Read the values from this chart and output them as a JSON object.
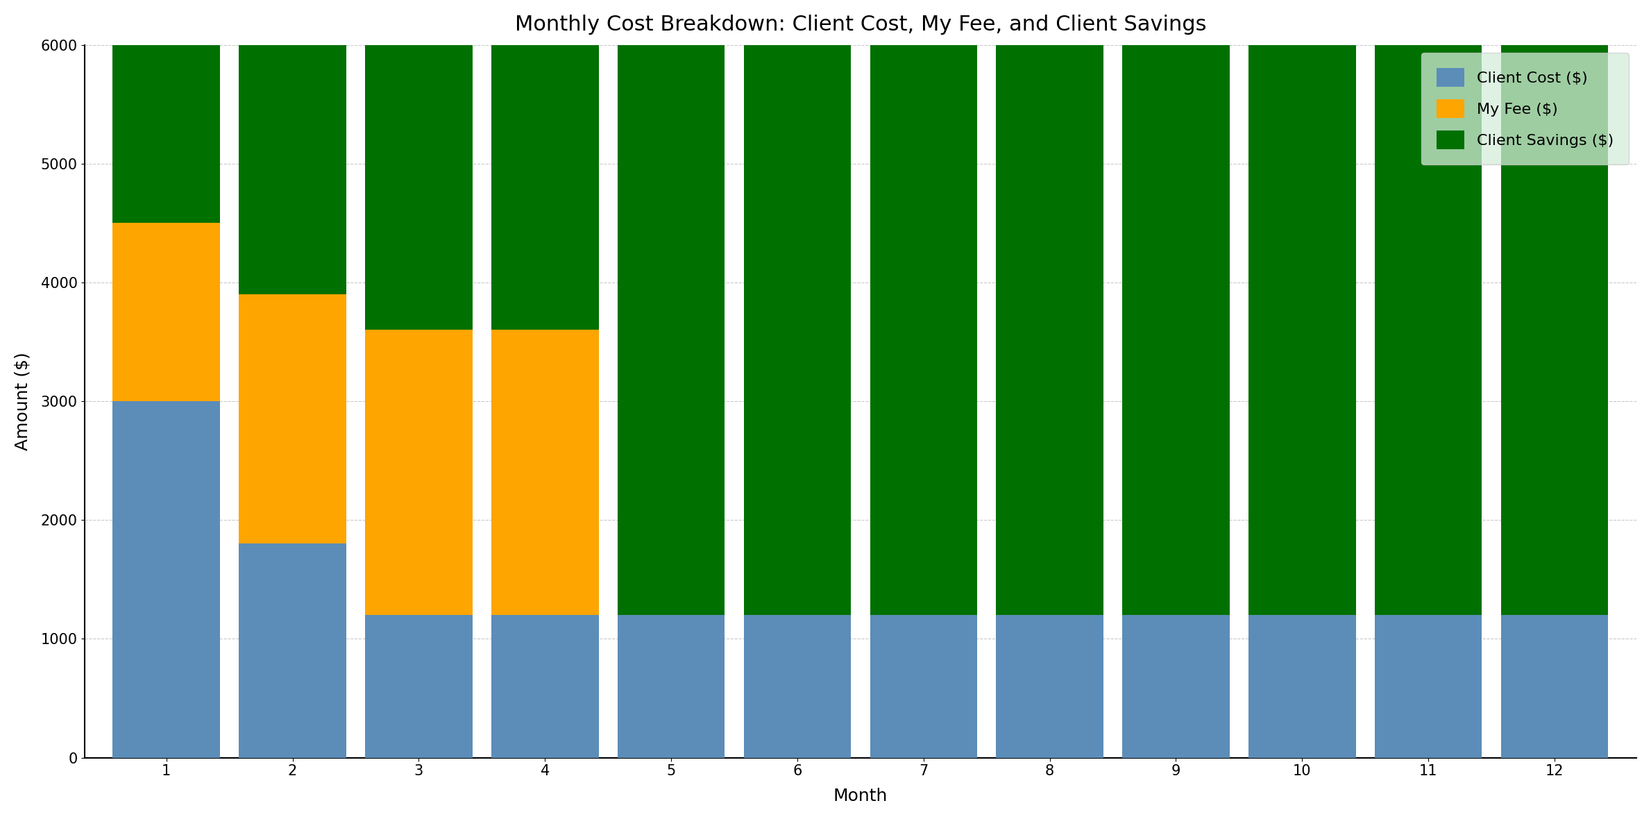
{
  "title": "Monthly Cost Breakdown: Client Cost, My Fee, and Client Savings",
  "xlabel": "Month",
  "ylabel": "Amount ($)",
  "months": [
    1,
    2,
    3,
    4,
    5,
    6,
    7,
    8,
    9,
    10,
    11,
    12
  ],
  "client_cost": [
    3000,
    1800,
    1200,
    1200,
    1200,
    1200,
    1200,
    1200,
    1200,
    1200,
    1200,
    1200
  ],
  "my_fee": [
    1500,
    2100,
    2400,
    2400,
    0,
    0,
    0,
    0,
    0,
    0,
    0,
    0
  ],
  "client_savings": [
    1500,
    2100,
    2400,
    2400,
    4800,
    4800,
    4800,
    4800,
    4800,
    4800,
    4800,
    4800
  ],
  "color_client_cost": "#5b8db8",
  "color_my_fee": "#FFA500",
  "color_client_savings": "#007000",
  "ylim": [
    0,
    6000
  ],
  "yticks": [
    0,
    1000,
    2000,
    3000,
    4000,
    5000,
    6000
  ],
  "legend_labels": [
    "Client Cost ($)",
    "My Fee ($)",
    "Client Savings ($)"
  ],
  "figsize": [
    23.79,
    11.8
  ],
  "dpi": 100,
  "bar_width": 0.85,
  "title_fontsize": 22,
  "axis_label_fontsize": 18,
  "tick_fontsize": 15,
  "legend_fontsize": 16,
  "plot_bg_color": "#ffffff",
  "fig_bg_color": "#ffffff",
  "legend_facecolor": "#d4edda",
  "grid_color": "#bbbbbb"
}
